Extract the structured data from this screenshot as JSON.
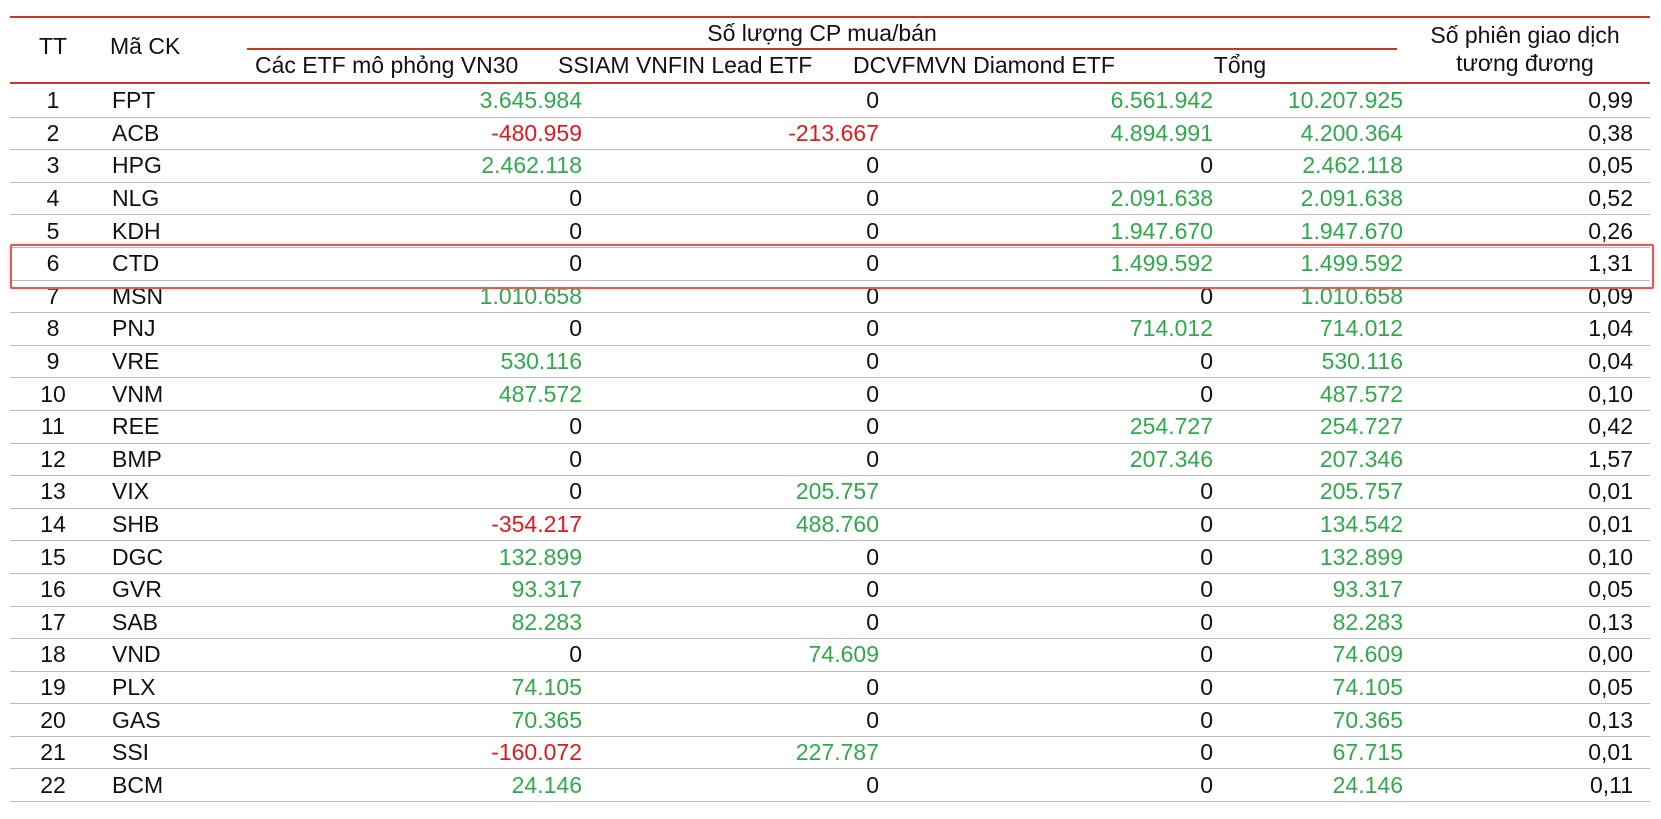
{
  "header": {
    "tt": "TT",
    "ma_ck": "Mã CK",
    "group": "Số lượng CP mua/bán",
    "etf_vn30": "Các ETF mô phỏng VN30",
    "ssiam": "SSIAM VNFIN Lead ETF",
    "dcvfm": "DCVFMVN Diamond ETF",
    "tong": "Tổng",
    "phien_line1": "Số phiên giao dịch",
    "phien_line2": "tương đương"
  },
  "colors": {
    "positive": "#2eaa4a",
    "negative": "#e4171c",
    "rule": "#c0392b",
    "highlight": "#e05a5a"
  },
  "highlighted_row": "6",
  "rows": [
    {
      "tt": "1",
      "ma": "FPT",
      "etf": "3.645.984",
      "ssi": "0",
      "dcv": "6.561.942",
      "tong": "10.207.925",
      "phien": "0,99"
    },
    {
      "tt": "2",
      "ma": "ACB",
      "etf": "-480.959",
      "ssi": "-213.667",
      "dcv": "4.894.991",
      "tong": "4.200.364",
      "phien": "0,38"
    },
    {
      "tt": "3",
      "ma": "HPG",
      "etf": "2.462.118",
      "ssi": "0",
      "dcv": "0",
      "tong": "2.462.118",
      "phien": "0,05"
    },
    {
      "tt": "4",
      "ma": "NLG",
      "etf": "0",
      "ssi": "0",
      "dcv": "2.091.638",
      "tong": "2.091.638",
      "phien": "0,52"
    },
    {
      "tt": "5",
      "ma": "KDH",
      "etf": "0",
      "ssi": "0",
      "dcv": "1.947.670",
      "tong": "1.947.670",
      "phien": "0,26"
    },
    {
      "tt": "6",
      "ma": "CTD",
      "etf": "0",
      "ssi": "0",
      "dcv": "1.499.592",
      "tong": "1.499.592",
      "phien": "1,31"
    },
    {
      "tt": "7",
      "ma": "MSN",
      "etf": "1.010.658",
      "ssi": "0",
      "dcv": "0",
      "tong": "1.010.658",
      "phien": "0,09"
    },
    {
      "tt": "8",
      "ma": "PNJ",
      "etf": "0",
      "ssi": "0",
      "dcv": "714.012",
      "tong": "714.012",
      "phien": "1,04"
    },
    {
      "tt": "9",
      "ma": "VRE",
      "etf": "530.116",
      "ssi": "0",
      "dcv": "0",
      "tong": "530.116",
      "phien": "0,04"
    },
    {
      "tt": "10",
      "ma": "VNM",
      "etf": "487.572",
      "ssi": "0",
      "dcv": "0",
      "tong": "487.572",
      "phien": "0,10"
    },
    {
      "tt": "11",
      "ma": "REE",
      "etf": "0",
      "ssi": "0",
      "dcv": "254.727",
      "tong": "254.727",
      "phien": "0,42"
    },
    {
      "tt": "12",
      "ma": "BMP",
      "etf": "0",
      "ssi": "0",
      "dcv": "207.346",
      "tong": "207.346",
      "phien": "1,57"
    },
    {
      "tt": "13",
      "ma": "VIX",
      "etf": "0",
      "ssi": "205.757",
      "dcv": "0",
      "tong": "205.757",
      "phien": "0,01"
    },
    {
      "tt": "14",
      "ma": "SHB",
      "etf": "-354.217",
      "ssi": "488.760",
      "dcv": "0",
      "tong": "134.542",
      "phien": "0,01"
    },
    {
      "tt": "15",
      "ma": "DGC",
      "etf": "132.899",
      "ssi": "0",
      "dcv": "0",
      "tong": "132.899",
      "phien": "0,10"
    },
    {
      "tt": "16",
      "ma": "GVR",
      "etf": "93.317",
      "ssi": "0",
      "dcv": "0",
      "tong": "93.317",
      "phien": "0,05"
    },
    {
      "tt": "17",
      "ma": "SAB",
      "etf": "82.283",
      "ssi": "0",
      "dcv": "0",
      "tong": "82.283",
      "phien": "0,13"
    },
    {
      "tt": "18",
      "ma": "VND",
      "etf": "0",
      "ssi": "74.609",
      "dcv": "0",
      "tong": "74.609",
      "phien": "0,00"
    },
    {
      "tt": "19",
      "ma": "PLX",
      "etf": "74.105",
      "ssi": "0",
      "dcv": "0",
      "tong": "74.105",
      "phien": "0,05"
    },
    {
      "tt": "20",
      "ma": "GAS",
      "etf": "70.365",
      "ssi": "0",
      "dcv": "0",
      "tong": "70.365",
      "phien": "0,13"
    },
    {
      "tt": "21",
      "ma": "SSI",
      "etf": "-160.072",
      "ssi": "227.787",
      "dcv": "0",
      "tong": "67.715",
      "phien": "0,01"
    },
    {
      "tt": "22",
      "ma": "BCM",
      "etf": "24.146",
      "ssi": "0",
      "dcv": "0",
      "tong": "24.146",
      "phien": "0,11"
    }
  ]
}
